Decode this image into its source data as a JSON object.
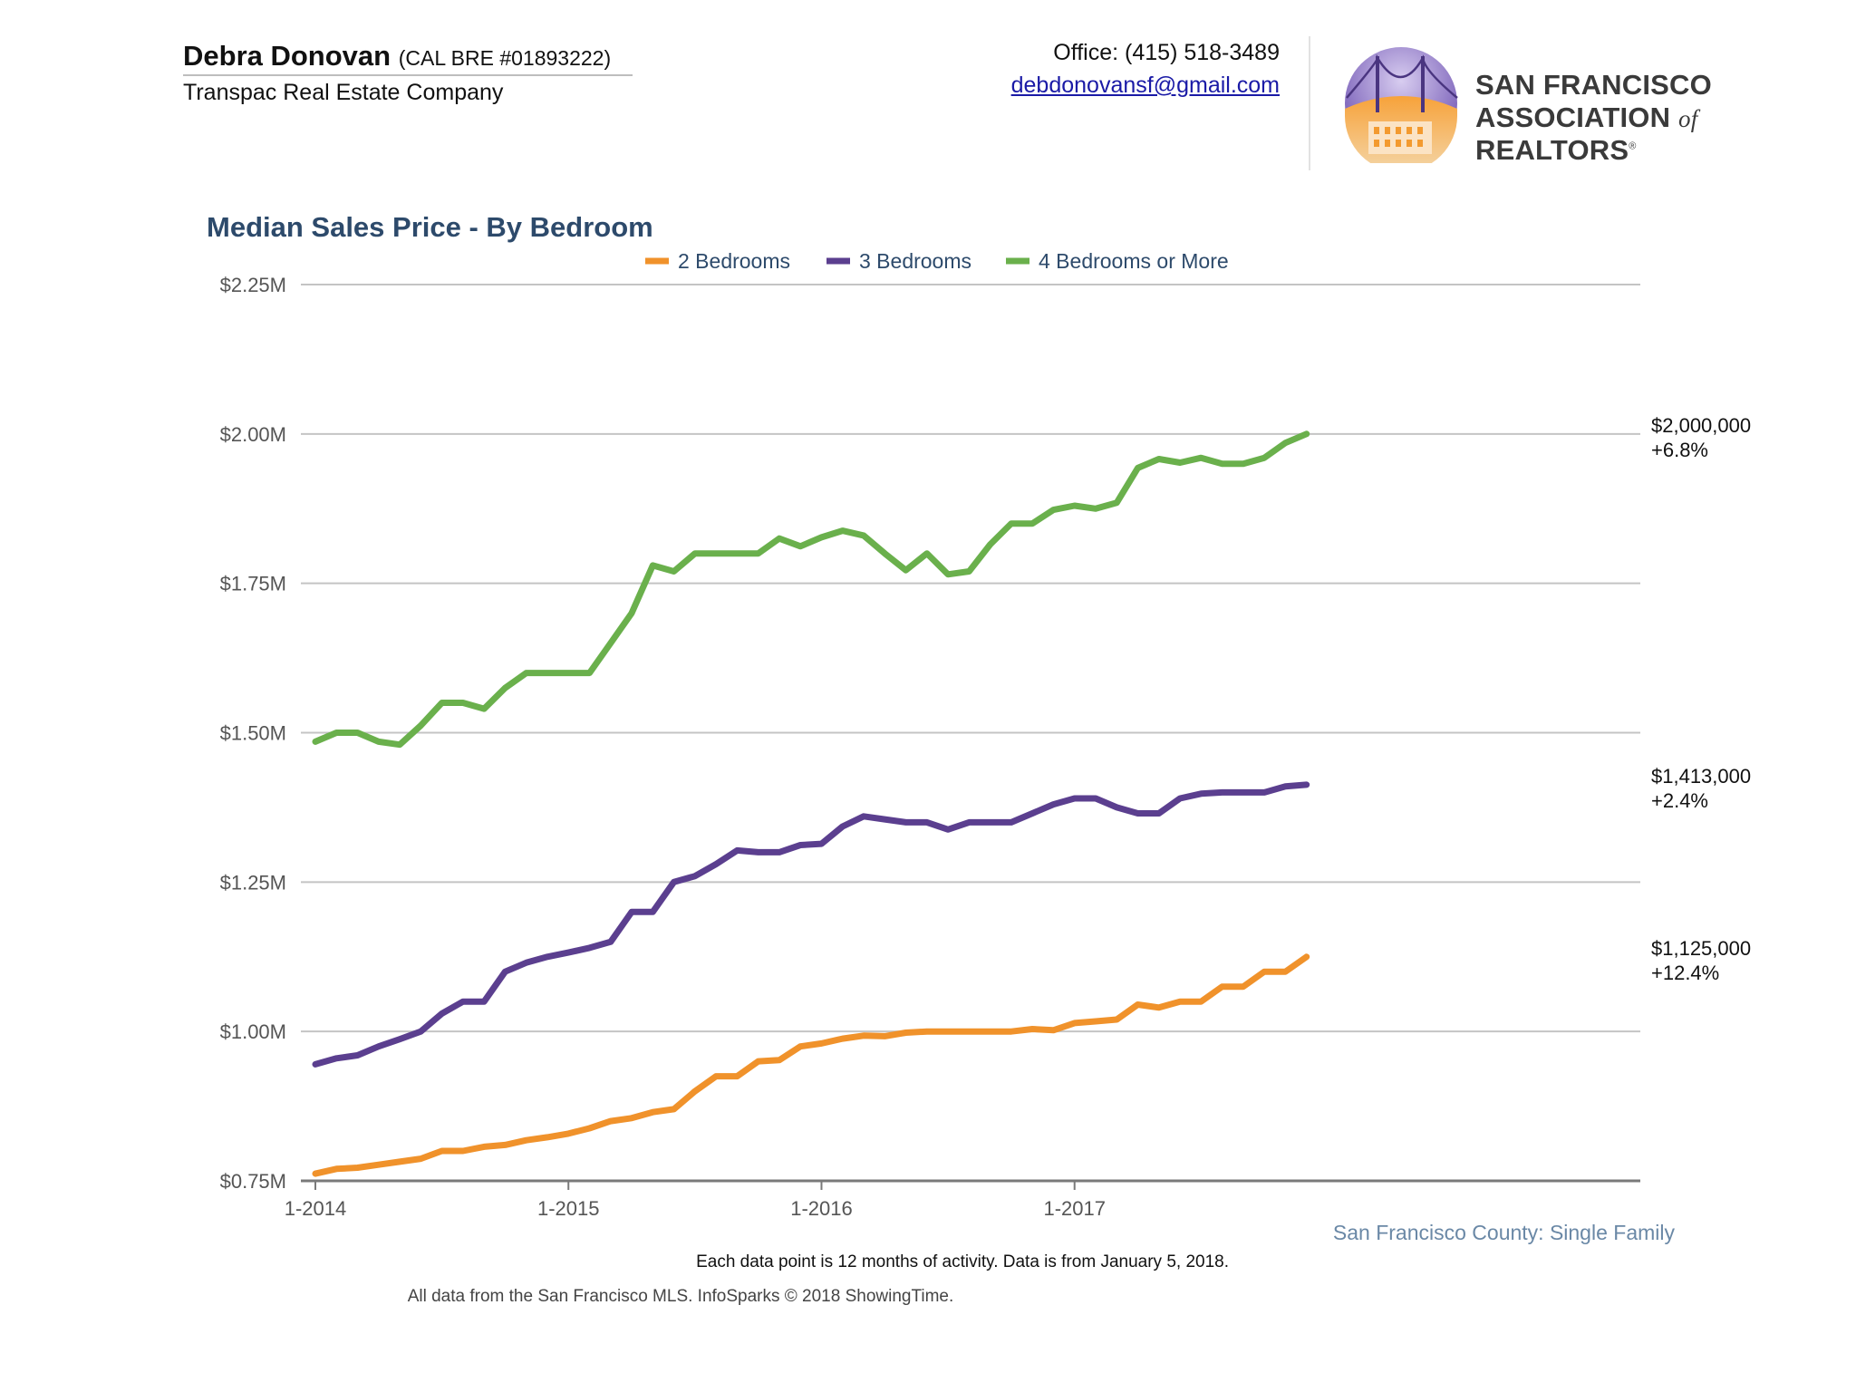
{
  "header": {
    "agent_name": "Debra Donovan",
    "agent_license": "(CAL BRE #01893222)",
    "company": "Transpac Real Estate Company",
    "office_phone": "Office: (415) 518-3489",
    "email": "debdonovansf@gmail.com",
    "association_line1": "SAN FRANCISCO",
    "association_line2_a": "ASSOCIATION",
    "association_line2_of": "of",
    "association_line2_b": "REALTORS",
    "association_reg": "®"
  },
  "colors": {
    "two_bed": "#f0922b",
    "three_bed": "#5b3f8f",
    "four_bed": "#6ab04c",
    "title": "#2d4a6b",
    "gridline": "#c4c4c4",
    "axis_text": "#555555",
    "region_text": "#6a88a6"
  },
  "footer": {
    "note": "Each data point is 12 months of activity. Data is from January 5, 2018.",
    "source": "All data from the San Francisco MLS. InfoSparks © 2018 ShowingTime."
  },
  "chart_data": {
    "type": "line",
    "title": "Median Sales Price - By Bedroom",
    "subtitle": "San Francisco County: Single Family",
    "xlabel": "",
    "ylabel": "",
    "x_tick_labels": [
      "1-2014",
      "1-2015",
      "1-2016",
      "1-2017"
    ],
    "y_tick_labels": [
      "$0.75M",
      "$1.00M",
      "$1.25M",
      "$1.50M",
      "$1.75M",
      "$2.00M",
      "$2.25M"
    ],
    "ylim": [
      0.75,
      2.25
    ],
    "grid": true,
    "legend_position": "top-center",
    "x": [
      "1-2014",
      "2-2014",
      "3-2014",
      "4-2014",
      "5-2014",
      "6-2014",
      "7-2014",
      "8-2014",
      "9-2014",
      "10-2014",
      "11-2014",
      "12-2014",
      "1-2015",
      "2-2015",
      "3-2015",
      "4-2015",
      "5-2015",
      "6-2015",
      "7-2015",
      "8-2015",
      "9-2015",
      "10-2015",
      "11-2015",
      "12-2015",
      "1-2016",
      "2-2016",
      "3-2016",
      "4-2016",
      "5-2016",
      "6-2016",
      "7-2016",
      "8-2016",
      "9-2016",
      "10-2016",
      "11-2016",
      "12-2016",
      "1-2017",
      "2-2017",
      "3-2017",
      "4-2017",
      "5-2017",
      "6-2017",
      "7-2017",
      "8-2017",
      "9-2017",
      "10-2017",
      "11-2017",
      "12-2017"
    ],
    "series": [
      {
        "name": "2 Bedrooms",
        "color": "#f0922b",
        "end_value": "$1,125,000",
        "end_change": "+12.4%",
        "values": [
          0.762,
          0.77,
          0.772,
          0.777,
          0.782,
          0.787,
          0.8,
          0.8,
          0.807,
          0.81,
          0.818,
          0.823,
          0.829,
          0.838,
          0.85,
          0.855,
          0.865,
          0.87,
          0.9,
          0.925,
          0.925,
          0.95,
          0.952,
          0.975,
          0.98,
          0.988,
          0.993,
          0.992,
          0.998,
          1.0,
          1.0,
          1.0,
          1.0,
          1.0,
          1.004,
          1.002,
          1.014,
          1.017,
          1.02,
          1.045,
          1.04,
          1.05,
          1.05,
          1.075,
          1.075,
          1.1,
          1.1,
          1.125
        ]
      },
      {
        "name": "3 Bedrooms",
        "color": "#5b3f8f",
        "end_value": "$1,413,000",
        "end_change": "+2.4%",
        "values": [
          0.945,
          0.955,
          0.96,
          0.975,
          0.987,
          1.0,
          1.03,
          1.05,
          1.05,
          1.1,
          1.115,
          1.125,
          1.132,
          1.14,
          1.15,
          1.2,
          1.2,
          1.25,
          1.26,
          1.28,
          1.303,
          1.3,
          1.3,
          1.312,
          1.314,
          1.343,
          1.36,
          1.355,
          1.35,
          1.35,
          1.338,
          1.35,
          1.35,
          1.35,
          1.365,
          1.38,
          1.39,
          1.39,
          1.375,
          1.365,
          1.365,
          1.39,
          1.398,
          1.4,
          1.4,
          1.4,
          1.41,
          1.413
        ]
      },
      {
        "name": "4 Bedrooms or More",
        "color": "#6ab04c",
        "end_value": "$2,000,000",
        "end_change": "+6.8%",
        "values": [
          1.485,
          1.5,
          1.5,
          1.485,
          1.48,
          1.512,
          1.55,
          1.55,
          1.54,
          1.575,
          1.6,
          1.6,
          1.6,
          1.6,
          1.65,
          1.7,
          1.78,
          1.77,
          1.8,
          1.8,
          1.8,
          1.8,
          1.825,
          1.812,
          1.827,
          1.838,
          1.83,
          1.8,
          1.772,
          1.8,
          1.765,
          1.77,
          1.815,
          1.85,
          1.85,
          1.873,
          1.88,
          1.875,
          1.885,
          1.943,
          1.958,
          1.952,
          1.96,
          1.95,
          1.95,
          1.96,
          1.985,
          2.0
        ]
      }
    ]
  }
}
